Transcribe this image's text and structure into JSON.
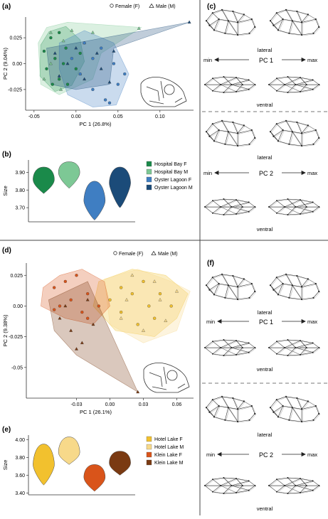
{
  "panels": {
    "a": {
      "label": "(a)"
    },
    "b": {
      "label": "(b)"
    },
    "c": {
      "label": "(c)"
    },
    "d": {
      "label": "(d)"
    },
    "e": {
      "label": "(e)"
    },
    "f": {
      "label": "(f)"
    }
  },
  "shape_legend": {
    "female": "Female (F)",
    "male": "Male (M)"
  },
  "wireframe_text": {
    "lateral": "lateral",
    "ventral": "ventral",
    "min": "min",
    "max": "max",
    "pc1": "PC 1",
    "pc2": "PC 2"
  },
  "colors": {
    "hospital_f": "#1a8a4a",
    "hospital_m": "#7dc895",
    "oyster_f": "#3f7ec2",
    "oyster_m": "#1b4b79",
    "hotel_f": "#f2c12e",
    "hotel_m": "#f7d98a",
    "klein_f": "#d9541a",
    "klein_m": "#7a3a12"
  },
  "chart_data": [
    {
      "id": "a",
      "type": "scatter",
      "xlabel": "PC 1 (26.8%)",
      "ylabel": "PC 2 (9.04%)",
      "xlim": [
        -0.06,
        0.14
      ],
      "ylim": [
        -0.045,
        0.045
      ],
      "xticks": [
        -0.05,
        0.0,
        0.05,
        0.1
      ],
      "xtick_labels": [
        "-0.05",
        "0.00",
        "0.05",
        "0.10"
      ],
      "yticks": [
        -0.025,
        0.0,
        0.025
      ],
      "ytick_labels": [
        "-0.025",
        "0.00",
        "0.025"
      ],
      "series": [
        {
          "name": "Hospital Bay F",
          "marker": "circle",
          "color": "#1a8a4a",
          "hull": [
            [
              -0.042,
              0.018
            ],
            [
              -0.032,
              0.031
            ],
            [
              -0.012,
              0.036
            ],
            [
              0.005,
              0.023
            ],
            [
              0.01,
              0.002
            ],
            [
              -0.005,
              -0.021
            ],
            [
              -0.025,
              -0.027
            ],
            [
              -0.043,
              -0.012
            ]
          ],
          "points": [
            [
              -0.038,
              0.012
            ],
            [
              -0.03,
              0.025
            ],
            [
              -0.02,
              0.03
            ],
            [
              -0.012,
              0.015
            ],
            [
              -0.025,
              0.005
            ],
            [
              -0.035,
              -0.005
            ],
            [
              -0.02,
              -0.015
            ],
            [
              -0.01,
              -0.02
            ],
            [
              0.0,
              -0.005
            ],
            [
              -0.015,
              0.0
            ],
            [
              -0.028,
              -0.02
            ],
            [
              0.005,
              0.01
            ]
          ]
        },
        {
          "name": "Hospital Bay M",
          "marker": "triangle",
          "color": "#7dc895",
          "hull": [
            [
              -0.045,
              0.02
            ],
            [
              -0.035,
              0.035
            ],
            [
              -0.01,
              0.04
            ],
            [
              0.078,
              0.035
            ],
            [
              0.03,
              0.01
            ],
            [
              0.02,
              -0.015
            ],
            [
              -0.02,
              -0.03
            ],
            [
              -0.042,
              -0.02
            ]
          ],
          "points": [
            [
              -0.03,
              0.03
            ],
            [
              -0.005,
              0.032
            ],
            [
              0.02,
              0.03
            ],
            [
              0.075,
              0.034
            ],
            [
              0.01,
              0.02
            ],
            [
              -0.015,
              0.022
            ],
            [
              -0.03,
              0.0
            ],
            [
              -0.018,
              -0.025
            ],
            [
              0.005,
              -0.01
            ],
            [
              -0.038,
              -0.015
            ]
          ]
        },
        {
          "name": "Oyster Lagoon F",
          "marker": "circle",
          "color": "#3f7ec2",
          "hull": [
            [
              -0.02,
              0.02
            ],
            [
              0.01,
              0.032
            ],
            [
              0.045,
              0.02
            ],
            [
              0.063,
              -0.01
            ],
            [
              0.048,
              -0.04
            ],
            [
              0.02,
              -0.042
            ],
            [
              -0.01,
              -0.03
            ],
            [
              -0.02,
              -0.005
            ]
          ],
          "points": [
            [
              0.01,
              0.02
            ],
            [
              0.03,
              0.015
            ],
            [
              0.045,
              0.0
            ],
            [
              0.05,
              -0.02
            ],
            [
              0.035,
              -0.035
            ],
            [
              0.02,
              -0.025
            ],
            [
              0.005,
              -0.01
            ],
            [
              -0.005,
              0.005
            ],
            [
              0.02,
              0.005
            ],
            [
              0.058,
              -0.01
            ],
            [
              0.04,
              -0.038
            ]
          ]
        },
        {
          "name": "Oyster Lagoon M",
          "marker": "triangle",
          "color": "#1b4b79",
          "hull": [
            [
              -0.035,
              0.015
            ],
            [
              0.0,
              0.02
            ],
            [
              0.135,
              0.04
            ],
            [
              0.045,
              0.015
            ],
            [
              0.04,
              -0.02
            ],
            [
              0.0,
              -0.025
            ],
            [
              -0.03,
              -0.02
            ]
          ],
          "points": [
            [
              0.135,
              0.04
            ],
            [
              0.025,
              0.01
            ],
            [
              0.0,
              0.015
            ],
            [
              -0.01,
              0.0
            ],
            [
              0.01,
              -0.015
            ],
            [
              0.03,
              -0.005
            ],
            [
              -0.025,
              0.01
            ],
            [
              -0.02,
              -0.012
            ],
            [
              0.04,
              -0.018
            ],
            [
              0.045,
              0.012
            ]
          ]
        }
      ]
    },
    {
      "id": "b",
      "type": "violin",
      "ylabel": "Size",
      "ylim": [
        3.62,
        3.97
      ],
      "yticks": [
        3.7,
        3.8,
        3.9
      ],
      "ytick_labels": [
        "3.70",
        "3.80",
        "3.90"
      ],
      "groups": [
        {
          "name": "Hospital Bay F",
          "color": "#1a8a4a",
          "min": 3.78,
          "max": 3.93,
          "mode": 3.86
        },
        {
          "name": "Hospital Bay M",
          "color": "#7dc895",
          "min": 3.81,
          "max": 3.96,
          "mode": 3.9
        },
        {
          "name": "Oyster Lagoon F",
          "color": "#3f7ec2",
          "min": 3.63,
          "max": 3.85,
          "mode": 3.74
        },
        {
          "name": "Oyster Lagoon M",
          "color": "#1b4b79",
          "min": 3.7,
          "max": 3.93,
          "mode": 3.84
        }
      ]
    },
    {
      "id": "d",
      "type": "scatter",
      "xlabel": "PC 1 (26.1%)",
      "ylabel": "PC 2 (9.38%)",
      "xlim": [
        -0.075,
        0.075
      ],
      "ylim": [
        -0.075,
        0.035
      ],
      "xticks": [
        -0.03,
        0.0,
        0.03,
        0.06
      ],
      "xtick_labels": [
        "-0.03",
        "0.00",
        "0.03",
        "0.06"
      ],
      "yticks": [
        -0.05,
        -0.025,
        0.0,
        0.025
      ],
      "ytick_labels": [
        "-0.05",
        "-0.025",
        "0.00",
        "0.025"
      ],
      "series": [
        {
          "name": "Hotel Lake F",
          "marker": "circle",
          "color": "#f2c12e",
          "hull": [
            [
              -0.01,
              0.02
            ],
            [
              0.02,
              0.03
            ],
            [
              0.05,
              0.025
            ],
            [
              0.07,
              0.01
            ],
            [
              0.06,
              -0.01
            ],
            [
              0.04,
              -0.025
            ],
            [
              0.005,
              -0.02
            ],
            [
              -0.015,
              0.0
            ]
          ],
          "points": [
            [
              0.01,
              0.015
            ],
            [
              0.03,
              0.02
            ],
            [
              0.045,
              0.01
            ],
            [
              0.055,
              0.0
            ],
            [
              0.04,
              -0.01
            ],
            [
              0.025,
              -0.015
            ],
            [
              0.01,
              -0.005
            ],
            [
              0.0,
              0.005
            ],
            [
              0.035,
              0.0
            ],
            [
              0.02,
              0.01
            ]
          ]
        },
        {
          "name": "Hotel Lake M",
          "marker": "triangle",
          "color": "#f7d98a",
          "hull": [
            [
              -0.005,
              0.022
            ],
            [
              0.025,
              0.03
            ],
            [
              0.055,
              0.02
            ],
            [
              0.072,
              0.012
            ],
            [
              0.06,
              -0.02
            ],
            [
              0.03,
              -0.03
            ],
            [
              0.0,
              -0.015
            ]
          ],
          "points": [
            [
              0.02,
              0.025
            ],
            [
              0.04,
              0.02
            ],
            [
              0.06,
              0.012
            ],
            [
              0.05,
              -0.012
            ],
            [
              0.03,
              -0.02
            ],
            [
              0.01,
              -0.01
            ],
            [
              0.015,
              0.005
            ],
            [
              0.045,
              0.005
            ]
          ]
        },
        {
          "name": "Klein Lake F",
          "marker": "circle",
          "color": "#d9541a",
          "hull": [
            [
              -0.06,
              0.015
            ],
            [
              -0.045,
              0.025
            ],
            [
              -0.025,
              0.03
            ],
            [
              -0.005,
              0.02
            ],
            [
              0.0,
              0.0
            ],
            [
              -0.015,
              -0.015
            ],
            [
              -0.04,
              -0.01
            ],
            [
              -0.062,
              0.0
            ]
          ],
          "points": [
            [
              -0.05,
              0.015
            ],
            [
              -0.04,
              0.02
            ],
            [
              -0.03,
              0.025
            ],
            [
              -0.02,
              0.01
            ],
            [
              -0.035,
              0.005
            ],
            [
              -0.045,
              0.0
            ],
            [
              -0.025,
              -0.005
            ],
            [
              -0.01,
              0.0
            ],
            [
              -0.05,
              -0.003
            ],
            [
              -0.02,
              -0.01
            ]
          ]
        },
        {
          "name": "Klein Lake M",
          "marker": "triangle",
          "color": "#7a3a12",
          "hull": [
            [
              -0.055,
              0.005
            ],
            [
              -0.02,
              0.02
            ],
            [
              -0.01,
              0.0
            ],
            [
              0.025,
              -0.07
            ],
            [
              -0.03,
              -0.04
            ],
            [
              -0.05,
              -0.02
            ]
          ],
          "points": [
            [
              -0.045,
              -0.01
            ],
            [
              -0.035,
              -0.02
            ],
            [
              -0.025,
              -0.03
            ],
            [
              -0.015,
              -0.015
            ],
            [
              -0.04,
              0.0
            ],
            [
              0.025,
              -0.07
            ],
            [
              -0.02,
              0.005
            ],
            [
              -0.03,
              -0.035
            ]
          ]
        }
      ]
    },
    {
      "id": "e",
      "type": "violin",
      "ylabel": "Size",
      "ylim": [
        3.38,
        4.05
      ],
      "yticks": [
        3.4,
        3.6,
        3.8,
        4.0
      ],
      "ytick_labels": [
        "3.40",
        "3.60",
        "3.80",
        "4.00"
      ],
      "groups": [
        {
          "name": "Hotel Lake F",
          "color": "#f2c12e",
          "min": 3.49,
          "max": 3.95,
          "mode": 3.72
        },
        {
          "name": "Hotel Lake M",
          "color": "#f7d98a",
          "min": 3.72,
          "max": 4.03,
          "mode": 3.86
        },
        {
          "name": "Klein Lake F",
          "color": "#d9541a",
          "min": 3.42,
          "max": 3.72,
          "mode": 3.58
        },
        {
          "name": "Klein Lake M",
          "color": "#7a3a12",
          "min": 3.6,
          "max": 3.87,
          "mode": 3.74
        }
      ]
    }
  ]
}
